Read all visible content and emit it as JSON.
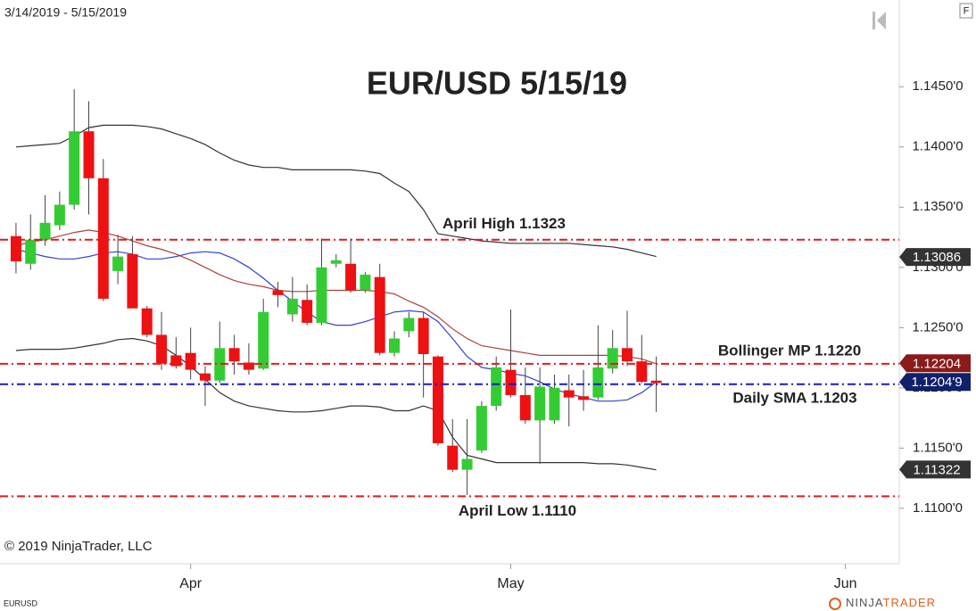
{
  "chart_data": {
    "type": "candlestick",
    "title": "EUR/USD 5/15/19",
    "date_range": "3/14/2019 - 5/15/2019",
    "instrument": "EURUSD",
    "copyright": "© 2019 NinjaTrader, LLC",
    "brand": [
      "NINJA",
      "TRADER"
    ],
    "corner_button": "F",
    "up_color": "#33cc33",
    "down_color": "#ee1111",
    "x": [
      0,
      1,
      2,
      3,
      4,
      5,
      6,
      7,
      8,
      9,
      10,
      11,
      12,
      13,
      14,
      15,
      16,
      17,
      18,
      19,
      20,
      21,
      22,
      23,
      24,
      25,
      26,
      27,
      28,
      29,
      30,
      31,
      32,
      33,
      34,
      35,
      36,
      37,
      38,
      39,
      40,
      41,
      42,
      43,
      44
    ],
    "open": [
      1.1326,
      1.1303,
      1.1323,
      1.1335,
      1.1352,
      1.1413,
      1.1374,
      1.1297,
      1.1311,
      1.1266,
      1.1244,
      1.1227,
      1.1229,
      1.1212,
      1.1206,
      1.1233,
      1.1221,
      1.1216,
      1.1281,
      1.1261,
      1.1273,
      1.1254,
      1.1303,
      1.1303,
      1.1281,
      1.1292,
      1.1229,
      1.1247,
      1.1258,
      1.1226,
      1.1152,
      1.1132,
      1.1148,
      1.1185,
      1.1215,
      1.1194,
      1.1173,
      1.1173,
      1.1198,
      1.1193,
      1.1192,
      1.1216,
      1.1233,
      1.1222,
      1.1206
    ],
    "high": [
      1.1337,
      1.1344,
      1.136,
      1.1363,
      1.1448,
      1.1438,
      1.139,
      1.1327,
      1.1326,
      1.1268,
      1.1263,
      1.1242,
      1.125,
      1.1218,
      1.1255,
      1.1244,
      1.1237,
      1.1274,
      1.1288,
      1.1292,
      1.1286,
      1.1324,
      1.1311,
      1.1324,
      1.1296,
      1.1303,
      1.1247,
      1.1263,
      1.1263,
      1.1227,
      1.1174,
      1.1174,
      1.1189,
      1.1226,
      1.1265,
      1.1217,
      1.1217,
      1.1211,
      1.1211,
      1.1215,
      1.1252,
      1.1248,
      1.1264,
      1.1244,
      1.1226
    ],
    "low": [
      1.1295,
      1.1298,
      1.1318,
      1.1331,
      1.1348,
      1.1344,
      1.1272,
      1.1286,
      1.1266,
      1.1242,
      1.1215,
      1.1216,
      1.1207,
      1.1185,
      1.1204,
      1.1211,
      1.1211,
      1.1215,
      1.1267,
      1.1255,
      1.1252,
      1.1252,
      1.13,
      1.1279,
      1.1279,
      1.1227,
      1.1226,
      1.1242,
      1.1192,
      1.1152,
      1.113,
      1.1111,
      1.1146,
      1.1181,
      1.1192,
      1.117,
      1.1137,
      1.117,
      1.1168,
      1.1181,
      1.119,
      1.1212,
      1.1218,
      1.1204,
      1.118
    ],
    "close": [
      1.1305,
      1.1323,
      1.1337,
      1.1352,
      1.1413,
      1.1374,
      1.1274,
      1.1309,
      1.1266,
      1.1244,
      1.122,
      1.1218,
      1.1215,
      1.1206,
      1.1233,
      1.1222,
      1.1215,
      1.1263,
      1.1277,
      1.1274,
      1.1254,
      1.13,
      1.1306,
      1.1281,
      1.1294,
      1.1229,
      1.1241,
      1.1258,
      1.1228,
      1.1154,
      1.1132,
      1.1141,
      1.1185,
      1.1217,
      1.1194,
      1.1173,
      1.1201,
      1.12,
      1.1192,
      1.119,
      1.1217,
      1.1233,
      1.1222,
      1.1205,
      1.1204
    ],
    "lines": [
      {
        "color": "#333333",
        "values": [
          1.14,
          1.1401,
          1.1402,
          1.1403,
          1.1409,
          1.1416,
          1.1418,
          1.1418,
          1.1418,
          1.1417,
          1.1415,
          1.1411,
          1.1407,
          1.1402,
          1.1395,
          1.1389,
          1.1385,
          1.1383,
          1.1383,
          1.1381,
          1.1381,
          1.1381,
          1.1381,
          1.1381,
          1.138,
          1.1378,
          1.137,
          1.1363,
          1.1348,
          1.1328,
          1.1326,
          1.1324,
          1.1322,
          1.1321,
          1.132,
          1.132,
          1.132,
          1.132,
          1.132,
          1.1319,
          1.1318,
          1.1317,
          1.1315,
          1.1312,
          1.1309
        ]
      },
      {
        "color": "#333333",
        "values": [
          1.1231,
          1.1232,
          1.1232,
          1.1232,
          1.1233,
          1.1235,
          1.1237,
          1.124,
          1.1241,
          1.1239,
          1.1235,
          1.1227,
          1.1218,
          1.1207,
          1.1196,
          1.1189,
          1.1185,
          1.1183,
          1.1181,
          1.118,
          1.118,
          1.1181,
          1.1183,
          1.1185,
          1.1185,
          1.1184,
          1.1181,
          1.1181,
          1.1185,
          1.1181,
          1.1159,
          1.1144,
          1.1141,
          1.1138,
          1.1138,
          1.1138,
          1.1138,
          1.1138,
          1.1138,
          1.1138,
          1.1137,
          1.1137,
          1.1136,
          1.1134,
          1.1132
        ]
      },
      {
        "color": "#a8433a",
        "values": [
          1.1318,
          1.1321,
          1.1323,
          1.1326,
          1.1329,
          1.1331,
          1.1329,
          1.1326,
          1.1322,
          1.1318,
          1.1315,
          1.1311,
          1.1306,
          1.13,
          1.1294,
          1.1289,
          1.1286,
          1.1284,
          1.1281,
          1.128,
          1.128,
          1.1281,
          1.1281,
          1.1281,
          1.1281,
          1.128,
          1.1278,
          1.1272,
          1.1267,
          1.1259,
          1.1249,
          1.1241,
          1.1235,
          1.1233,
          1.1231,
          1.1229,
          1.1227,
          1.1227,
          1.1227,
          1.1227,
          1.1227,
          1.1227,
          1.1226,
          1.1224,
          1.122
        ]
      },
      {
        "color": "#3344cc",
        "values": [
          1.1315,
          1.1312,
          1.1309,
          1.1307,
          1.1307,
          1.1309,
          1.1312,
          1.1313,
          1.1311,
          1.1307,
          1.1307,
          1.1309,
          1.1312,
          1.1313,
          1.1312,
          1.1307,
          1.13,
          1.1291,
          1.1281,
          1.1272,
          1.1263,
          1.1255,
          1.1252,
          1.1252,
          1.1255,
          1.1259,
          1.1263,
          1.1264,
          1.1263,
          1.1255,
          1.1241,
          1.1226,
          1.1217,
          1.1215,
          1.1212,
          1.121,
          1.1205,
          1.1199,
          1.1195,
          1.1192,
          1.1189,
          1.1189,
          1.119,
          1.1196,
          1.1205
        ]
      }
    ],
    "levels": [
      {
        "label": "April High 1.1323",
        "value": 1.1323,
        "color": "#e31a1a"
      },
      {
        "label": "Bollinger MP 1.1220",
        "value": 1.122,
        "color": "#e31a1a"
      },
      {
        "label": "Daily SMA 1.1203",
        "value": 1.1203,
        "color": "#1a1acc"
      },
      {
        "label": "April  Low 1.1110",
        "value": 1.111,
        "color": "#e31a1a"
      }
    ],
    "price_markers": [
      {
        "value": 1.13086,
        "label": "1.13086",
        "color": "#333333"
      },
      {
        "value": 1.12204,
        "label": "1.12204",
        "color": "#8b1a1a"
      },
      {
        "value": 1.12049,
        "label": "1.1204'9",
        "color": "#10206a"
      },
      {
        "value": 1.11322,
        "label": "1.11322",
        "color": "#333333"
      }
    ],
    "xlim": [
      -1.1,
      60.7
    ],
    "xticks": [
      {
        "value": 12,
        "label": "Apr"
      },
      {
        "value": 34,
        "label": "May"
      },
      {
        "value": 57,
        "label": "Jun"
      }
    ],
    "ylim": [
      1.1054,
      1.1522
    ],
    "yticks": [
      {
        "value": 1.11,
        "label": "1.1100'0"
      },
      {
        "value": 1.115,
        "label": "1.1150'0"
      },
      {
        "value": 1.12,
        "label": "1.1200'0"
      },
      {
        "value": 1.125,
        "label": "1.1250'0"
      },
      {
        "value": 1.13,
        "label": "1.1300'0"
      },
      {
        "value": 1.135,
        "label": "1.1350'0"
      },
      {
        "value": 1.14,
        "label": "1.1400'0"
      },
      {
        "value": 1.145,
        "label": "1.1450'0"
      }
    ]
  }
}
